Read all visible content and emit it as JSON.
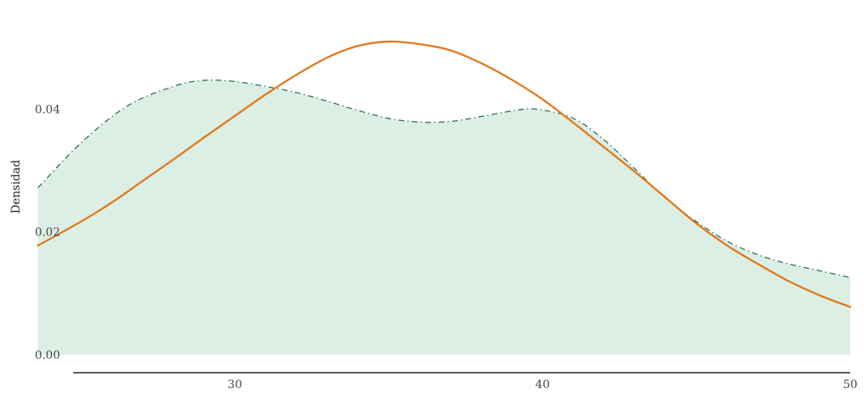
{
  "chart_data": {
    "type": "area",
    "title": "",
    "xlabel": "",
    "ylabel": "Densidad",
    "xlim": [
      23,
      50
    ],
    "ylim": [
      0,
      0.055
    ],
    "x_ticks": [
      {
        "value": 30,
        "label": "30"
      },
      {
        "value": 40,
        "label": "40"
      },
      {
        "value": 50,
        "label": "50"
      }
    ],
    "y_ticks": [
      {
        "value": 0.0,
        "label": "0.00"
      },
      {
        "value": 0.02,
        "label": "0.02"
      },
      {
        "value": 0.04,
        "label": "0.04"
      }
    ],
    "grid": false,
    "series": [
      {
        "style": "filled area with dashed outline",
        "fill_color": "#dcefe4",
        "line_color": "#2e6b57",
        "x": [
          23.6,
          25,
          26.5,
          28,
          29,
          30,
          31,
          32,
          33,
          34,
          35,
          36,
          37,
          38,
          39,
          39.8,
          41,
          42,
          43,
          44,
          45,
          46,
          47,
          48,
          49,
          50
        ],
        "y": [
          0.0272,
          0.0345,
          0.0405,
          0.0437,
          0.0447,
          0.0445,
          0.0437,
          0.0427,
          0.0413,
          0.0398,
          0.0385,
          0.0379,
          0.038,
          0.0388,
          0.0397,
          0.04,
          0.0385,
          0.035,
          0.0303,
          0.0255,
          0.0217,
          0.0185,
          0.0163,
          0.0148,
          0.0137,
          0.0126
        ]
      },
      {
        "style": "solid line",
        "line_color": "#e07b1f",
        "x": [
          23.6,
          25,
          26,
          27,
          28,
          29,
          30,
          31,
          32,
          33,
          34,
          35,
          36,
          37,
          38,
          39,
          40,
          41,
          42,
          43,
          44,
          45,
          46,
          47,
          48,
          49,
          50
        ],
        "y": [
          0.0178,
          0.0217,
          0.0248,
          0.0283,
          0.0318,
          0.0354,
          0.0389,
          0.0424,
          0.0456,
          0.0484,
          0.0503,
          0.051,
          0.0506,
          0.0496,
          0.0475,
          0.0448,
          0.0416,
          0.0378,
          0.0338,
          0.0298,
          0.0256,
          0.0214,
          0.0178,
          0.0148,
          0.012,
          0.0097,
          0.0078
        ]
      }
    ]
  }
}
